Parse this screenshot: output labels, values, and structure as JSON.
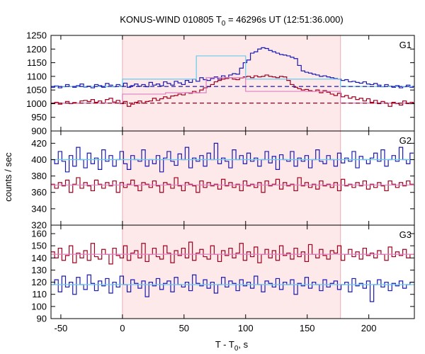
{
  "chart_data": {
    "type": "line",
    "title": {
      "main": "KONUS-WIND 010805 T",
      "sub": "0",
      "rest": " = 46296s UT (12:51:36.000)"
    },
    "xlabel": {
      "main": "T - T",
      "sub": "0",
      "rest": ", s"
    },
    "ylabel": "counts / sec",
    "xlim": [
      -58,
      237
    ],
    "xticks": [
      -50,
      0,
      50,
      100,
      150,
      200
    ],
    "grid": false,
    "highlight_interval": {
      "x": [
        0,
        177
      ],
      "color": "#fde8ea"
    },
    "colors": {
      "blue": "#1a1ab0",
      "red": "#a0001e",
      "cyan": "#66ccee",
      "pink": "#e080c0"
    },
    "panels": [
      {
        "name": "G1",
        "ylim": [
          900,
          1250
        ],
        "yticks": [
          900,
          950,
          1000,
          1050,
          1100,
          1150,
          1200,
          1250
        ],
        "series": [
          {
            "color": "blue",
            "x0": -58,
            "dt": 2.944,
            "values": [
              1060,
              1065,
              1058,
              1062,
              1070,
              1063,
              1060,
              1066,
              1072,
              1061,
              1064,
              1058,
              1070,
              1066,
              1060,
              1074,
              1068,
              1062,
              1070,
              1064,
              1075,
              1060,
              1066,
              1072,
              1064,
              1070,
              1062,
              1078,
              1068,
              1072,
              1065,
              1080,
              1074,
              1068,
              1082,
              1076,
              1070,
              1085,
              1078,
              1090,
              1082,
              1095,
              1088,
              1085,
              1092,
              1098,
              1090,
              1102,
              1095,
              1105,
              1110,
              1108,
              1130,
              1150,
              1160,
              1185,
              1190,
              1200,
              1205,
              1202,
              1195,
              1190,
              1185,
              1180,
              1178,
              1175,
              1170,
              1165,
              1140,
              1120,
              1115,
              1112,
              1108,
              1105,
              1100,
              1102,
              1098,
              1095,
              1092,
              1090,
              1085,
              1088,
              1080,
              1082,
              1078,
              1075,
              1080,
              1072,
              1070,
              1074,
              1068,
              1062,
              1070,
              1064,
              1060,
              1066,
              1058,
              1062,
              1068,
              1060
            ]
          },
          {
            "color": "red",
            "x0": -58,
            "dt": 2.944,
            "values": [
              1000,
              1005,
              998,
              1002,
              1008,
              1000,
              1004,
              1002,
              1010,
              1012,
              1008,
              1015,
              1005,
              1010,
              1002,
              1015,
              1020,
              1006,
              1012,
              1000,
              1008,
              990,
              998,
              1005,
              1010,
              1002,
              1008,
              1010,
              1020,
              1012,
              1018,
              1025,
              1020,
              1028,
              1030,
              1035,
              1032,
              1040,
              1038,
              1045,
              1040,
              1050,
              1058,
              1062,
              1070,
              1080,
              1085,
              1090,
              1092,
              1095,
              1090,
              1088,
              1094,
              1098,
              1100,
              1095,
              1102,
              1098,
              1100,
              1105,
              1100,
              1098,
              1095,
              1100,
              1098,
              1085,
              1070,
              1060,
              1055,
              1050,
              1052,
              1048,
              1045,
              1050,
              1040,
              1048,
              1042,
              1035,
              1030,
              1038,
              1025,
              1030,
              1020,
              1025,
              1015,
              1020,
              1010,
              1018,
              1005,
              1012,
              1000,
              1008,
              1002,
              990,
              1005,
              1000,
              995,
              1010,
              1000,
              1005
            ]
          },
          {
            "color": "cyan",
            "x": [
              -58,
              0,
              0,
              60,
              60,
              100,
              100,
              177,
              177,
              237
            ],
            "y": [
              1063,
              1063,
              1090,
              1090,
              1175,
              1175,
              1090,
              1090,
              1063,
              1063
            ]
          },
          {
            "color": "pink",
            "x": [
              -58,
              0,
              0,
              35,
              35,
              68,
              68,
              100,
              100,
              177,
              177,
              237
            ],
            "y": [
              1002,
              1002,
              1035,
              1035,
              1040,
              1040,
              1095,
              1095,
              1045,
              1045,
              1002,
              1002
            ]
          },
          {
            "color": "blue",
            "dashed": true,
            "x": [
              -58,
              237
            ],
            "y": [
              1063,
              1063
            ]
          },
          {
            "color": "red",
            "dashed": true,
            "x": [
              -58,
              237
            ],
            "y": [
              1002,
              1002
            ]
          }
        ]
      },
      {
        "name": "G2",
        "ylim": [
          320,
          435
        ],
        "yticks": [
          320,
          340,
          360,
          380,
          400,
          420
        ],
        "series": [
          {
            "color": "blue",
            "x0": -58,
            "dt": 2.944,
            "values": [
              400,
              395,
              410,
              398,
              385,
              405,
              392,
              415,
              400,
              390,
              408,
              395,
              402,
              388,
              412,
              398,
              405,
              392,
              400,
              410,
              395,
              388,
              405,
              400,
              398,
              412,
              392,
              400,
              395,
              405,
              385,
              402,
              410,
              398,
              393,
              407,
              400,
              415,
              390,
              402,
              398,
              405,
              392,
              408,
              400,
              420,
              395,
              402,
              398,
              390,
              412,
              400,
              405,
              395,
              408,
              398,
              402,
              392,
              400,
              410,
              396,
              404,
              388,
              406,
              400,
              398,
              410,
              392,
              402,
              398,
              405,
              390,
              400,
              412,
              398,
              395,
              405,
              400,
              392,
              408,
              396,
              402,
              398,
              410,
              390,
              404,
              400,
              395,
              402,
              408,
              398,
              412,
              392,
              400,
              405,
              398,
              415,
              400,
              395,
              408
            ]
          },
          {
            "color": "red",
            "x0": -58,
            "dt": 2.944,
            "values": [
              370,
              365,
              372,
              368,
              375,
              360,
              370,
              378,
              365,
              372,
              368,
              362,
              375,
              370,
              365,
              372,
              368,
              374,
              360,
              372,
              366,
              370,
              375,
              368,
              362,
              372,
              370,
              366,
              374,
              368,
              360,
              372,
              370,
              365,
              378,
              368,
              362,
              372,
              370,
              368,
              360,
              374,
              366,
              372,
              368,
              370,
              364,
              376,
              368,
              372,
              366,
              370,
              362,
              374,
              368,
              370,
              366,
              372,
              360,
              374,
              368,
              370,
              376,
              364,
              372,
              368,
              370,
              362,
              378,
              368,
              372,
              366,
              370,
              364,
              374,
              368,
              370,
              366,
              372,
              362,
              376,
              368,
              370,
              366,
              372,
              368,
              374,
              364,
              370,
              366,
              372,
              368,
              362,
              374,
              370,
              366,
              372,
              368,
              374,
              370
            ]
          },
          {
            "color": "cyan",
            "x": [
              -58,
              237
            ],
            "y": [
              400,
              400
            ]
          },
          {
            "color": "pink",
            "x": [
              -58,
              237
            ],
            "y": [
              369,
              369
            ]
          }
        ]
      },
      {
        "name": "G3",
        "ylim": [
          90,
          167
        ],
        "yticks": [
          90,
          100,
          110,
          120,
          130,
          140,
          150,
          160
        ],
        "series": [
          {
            "color": "red",
            "x0": -58,
            "dt": 2.944,
            "values": [
              145,
              140,
              148,
              138,
              142,
              150,
              136,
              144,
              140,
              146,
              138,
              152,
              141,
              139,
              147,
              143,
              135,
              148,
              142,
              140,
              150,
              138,
              144,
              146,
              140,
              152,
              137,
              143,
              148,
              141,
              139,
              150,
              144,
              136,
              146,
              142,
              148,
              140,
              153,
              138,
              144,
              147,
              141,
              139,
              150,
              143,
              137,
              146,
              142,
              148,
              140,
              144,
              152,
              138,
              145,
              141,
              149,
              136,
              143,
              147,
              140,
              146,
              138,
              150,
              142,
              144,
              139,
              148,
              141,
              145,
              137,
              151,
              143,
              140,
              147,
              142,
              139,
              146,
              144,
              150,
              138,
              143,
              147,
              141,
              145,
              139,
              148,
              142,
              144,
              140,
              146,
              143,
              138,
              149,
              141,
              145,
              142,
              147,
              140,
              143
            ]
          },
          {
            "color": "blue",
            "x0": -58,
            "dt": 2.944,
            "values": [
              118,
              122,
              112,
              125,
              116,
              120,
              110,
              124,
              118,
              114,
              126,
              119,
              113,
              121,
              117,
              123,
              111,
              120,
              116,
              125,
              118,
              112,
              122,
              119,
              115,
              121,
              108,
              120,
              117,
              123,
              114,
              119,
              121,
              112,
              124,
              118,
              116,
              120,
              113,
              126,
              119,
              117,
              122,
              115,
              120,
              111,
              118,
              124,
              116,
              121,
              119,
              113,
              122,
              117,
              120,
              115,
              125,
              118,
              112,
              121,
              119,
              116,
              123,
              114,
              120,
              118,
              122,
              110,
              119,
              117,
              124,
              115,
              120,
              118,
              113,
              122,
              116,
              119,
              121,
              114,
              118,
              120,
              112,
              123,
              117,
              119,
              115,
              121,
              104,
              118,
              122,
              116,
              120,
              113,
              119,
              117,
              121,
              115,
              118,
              120
            ]
          },
          {
            "color": "cyan",
            "x": [
              -58,
              237
            ],
            "y": [
              118,
              118
            ]
          },
          {
            "color": "pink",
            "x": [
              -58,
              237
            ],
            "y": [
              143,
              143
            ]
          }
        ]
      }
    ]
  }
}
